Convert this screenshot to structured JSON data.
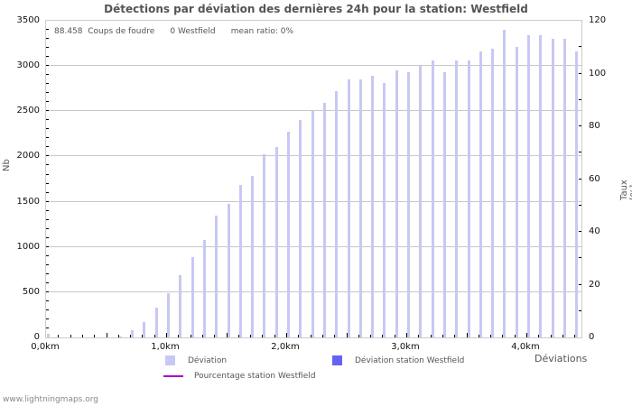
{
  "title": "Détections par déviation des dernières 24h pour la station: Westfield",
  "info": {
    "count": "88.458",
    "count_label": "Coups de foudre",
    "station_count": "0 Westfield",
    "mean_ratio": "mean ratio: 0%"
  },
  "axes": {
    "y_left_label": "Nb",
    "y_right_label": "Taux [%]",
    "x_label": "Déviations",
    "y_left_ticks": [
      "0",
      "500",
      "1000",
      "1500",
      "2000",
      "2500",
      "3000",
      "3500"
    ],
    "y_right_ticks": [
      "0",
      "20",
      "40",
      "60",
      "80",
      "100",
      "120"
    ],
    "x_ticks": [
      "0,0km",
      "1,0km",
      "2,0km",
      "3,0km",
      "4,0km"
    ]
  },
  "legend": {
    "deviation": "Déviation",
    "deviation_station": "Déviation station Westfield",
    "percentage_station": "Pourcentage station Westfield"
  },
  "colors": {
    "deviation": "#c8c8f4",
    "deviation_station": "#6464f0",
    "percentage_station": "#aa00cc"
  },
  "footer": "www.lightningmaps.org",
  "chart_data": {
    "type": "bar",
    "title": "Détections par déviation des dernières 24h pour la station: Westfield",
    "xlabel": "Déviations",
    "ylabel": "Nb",
    "y2label": "Taux [%]",
    "ylim": [
      0,
      3500
    ],
    "y2lim": [
      0,
      120
    ],
    "grid": true,
    "legend_position": "bottom",
    "categories": [
      "0.0",
      "0.1",
      "0.2",
      "0.3",
      "0.4",
      "0.5",
      "0.6",
      "0.7",
      "0.8",
      "0.9",
      "1.0",
      "1.1",
      "1.2",
      "1.3",
      "1.4",
      "1.5",
      "1.6",
      "1.7",
      "1.8",
      "1.9",
      "2.0",
      "2.1",
      "2.2",
      "2.3",
      "2.4",
      "2.5",
      "2.6",
      "2.7",
      "2.8",
      "2.9",
      "3.0",
      "3.1",
      "3.2",
      "3.3",
      "3.4",
      "3.5",
      "3.6",
      "3.7",
      "3.8",
      "3.9",
      "4.0",
      "4.1",
      "4.2",
      "4.3",
      "4.4"
    ],
    "series": [
      {
        "name": "Déviation",
        "values": [
          40,
          0,
          0,
          0,
          0,
          5,
          10,
          75,
          170,
          330,
          490,
          690,
          890,
          1080,
          1350,
          1480,
          1690,
          1790,
          2020,
          2100,
          2270,
          2400,
          2500,
          2590,
          2720,
          2850,
          2850,
          2890,
          2810,
          2950,
          2930,
          3000,
          3060,
          2930,
          3060,
          3060,
          3160,
          3190,
          3400,
          3210,
          3340,
          3340,
          3300,
          3300,
          3160
        ]
      },
      {
        "name": "Déviation station Westfield",
        "values": [
          0,
          0,
          0,
          0,
          0,
          0,
          0,
          0,
          0,
          0,
          0,
          0,
          0,
          0,
          0,
          0,
          0,
          0,
          0,
          0,
          0,
          0,
          0,
          0,
          0,
          0,
          0,
          0,
          0,
          0,
          0,
          0,
          0,
          0,
          0,
          0,
          0,
          0,
          0,
          0,
          0,
          0,
          0,
          0,
          0
        ]
      },
      {
        "name": "Pourcentage station Westfield",
        "values": [
          0,
          0,
          0,
          0,
          0,
          0,
          0,
          0,
          0,
          0,
          0,
          0,
          0,
          0,
          0,
          0,
          0,
          0,
          0,
          0,
          0,
          0,
          0,
          0,
          0,
          0,
          0,
          0,
          0,
          0,
          0,
          0,
          0,
          0,
          0,
          0,
          0,
          0,
          0,
          0,
          0,
          0,
          0,
          0,
          0
        ]
      }
    ]
  }
}
